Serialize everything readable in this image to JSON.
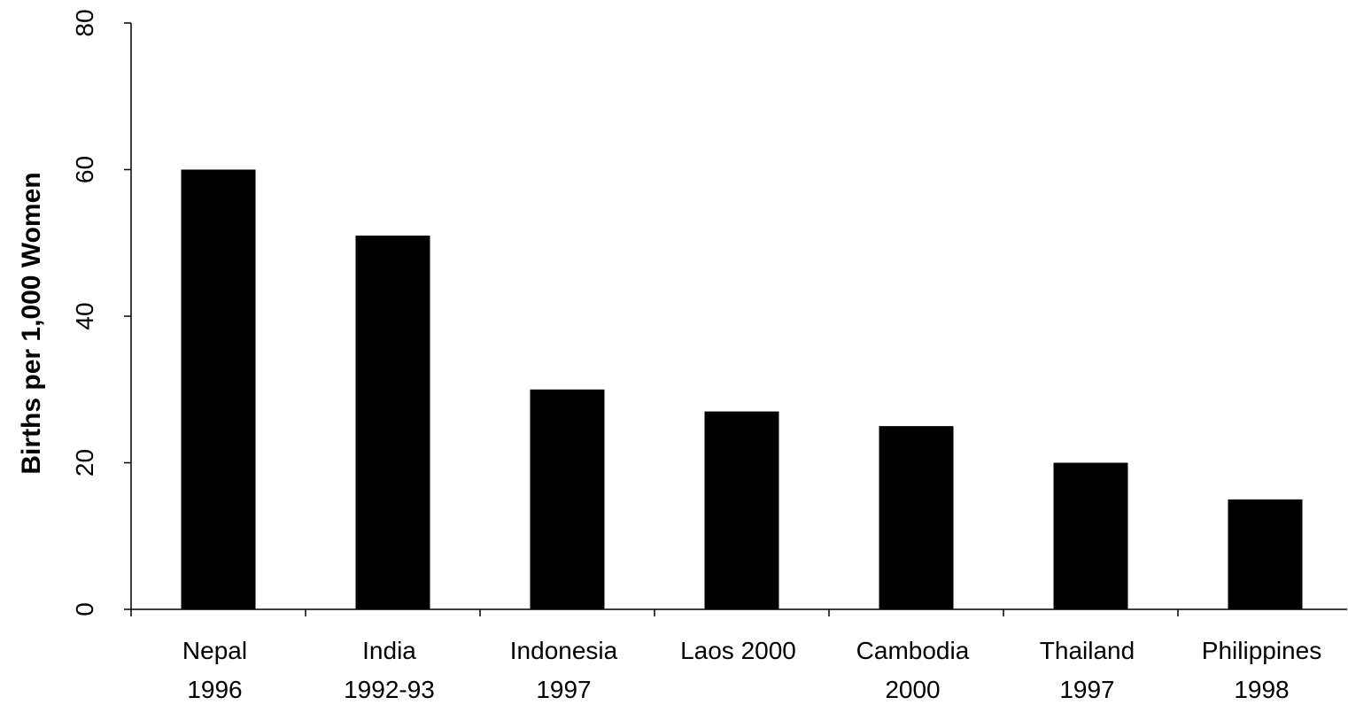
{
  "chart_data": {
    "type": "bar",
    "categories": [
      [
        "Nepal",
        "1996"
      ],
      [
        "India",
        "1992-93"
      ],
      [
        "Indonesia",
        "1997"
      ],
      [
        "Laos 2000",
        ""
      ],
      [
        "Cambodia",
        "2000"
      ],
      [
        "Thailand",
        "1997"
      ],
      [
        "Philippines",
        "1998"
      ]
    ],
    "values": [
      60,
      51,
      30,
      27,
      25,
      20,
      15
    ],
    "ylabel": "Births per 1,000 Women",
    "ylim": [
      0,
      80
    ],
    "yticks": [
      "0",
      "20",
      "40",
      "60",
      "80"
    ],
    "bar_color": "#000000",
    "grid": false
  }
}
